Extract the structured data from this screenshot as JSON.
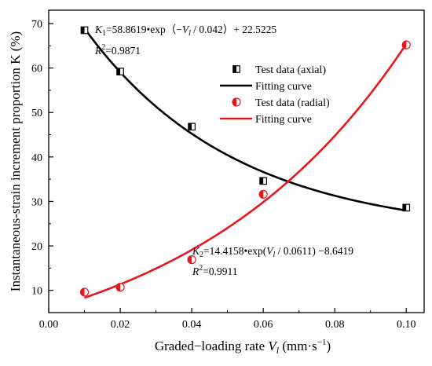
{
  "chart_data": {
    "type": "scatter",
    "xlabel": {
      "main": "Graded−loading rate ",
      "var": "V",
      "sub": "l",
      "unit": " (mm·s",
      "sup": "−1",
      "close": ")"
    },
    "ylabel": "Instantaneous-strain increment proportion K (%)",
    "xlim": [
      0.0,
      0.105
    ],
    "ylim": [
      5,
      73
    ],
    "xticks": [
      "0.00",
      "0.02",
      "0.04",
      "0.06",
      "0.08",
      "0.10"
    ],
    "yticks": [
      "10",
      "20",
      "30",
      "40",
      "50",
      "60",
      "70"
    ],
    "grid": false,
    "legend_position": "top-right",
    "series": [
      {
        "name": "Test data (axial)",
        "kind": "points",
        "marker": "half-filled-square",
        "color": "#000000",
        "x": [
          0.01,
          0.02,
          0.04,
          0.06,
          0.1
        ],
        "y": [
          68.5,
          59.2,
          46.8,
          34.6,
          28.6
        ]
      },
      {
        "name": "Fitting curve",
        "kind": "curve",
        "color": "#000000",
        "equation": {
          "a": 58.8619,
          "tau": 0.042,
          "c": 22.5225,
          "sign": -1
        },
        "x_range": [
          0.01,
          0.1
        ]
      },
      {
        "name": "Test data (radial)",
        "kind": "points",
        "marker": "half-filled-circle",
        "color": "#e8171d",
        "x": [
          0.01,
          0.02,
          0.04,
          0.06,
          0.1
        ],
        "y": [
          9.6,
          10.7,
          16.9,
          31.6,
          65.2
        ]
      },
      {
        "name": "Fitting curve",
        "kind": "curve",
        "color": "#e8171d",
        "equation": {
          "a": 14.4158,
          "tau": 0.0611,
          "c": -8.6419,
          "sign": 1
        },
        "x_range": [
          0.01,
          0.1
        ]
      }
    ],
    "annotations": {
      "eq1": {
        "k": "K",
        "ksub": "1",
        "body1": "=58.8619•exp（−",
        "v": "V",
        "vsub": "l",
        "body2": " / 0.042）+ 22.5225"
      },
      "r1": {
        "r": "R",
        "sup": "2",
        "val": "=0.9871"
      },
      "eq2": {
        "k": "K",
        "ksub": "2",
        "body1": "=14.4158•exp(",
        "v": "V",
        "vsub": "l",
        "body2": " / 0.0611) −8.6419"
      },
      "r2": {
        "r": "R",
        "sup": "2",
        "val": "=0.9911"
      }
    }
  }
}
